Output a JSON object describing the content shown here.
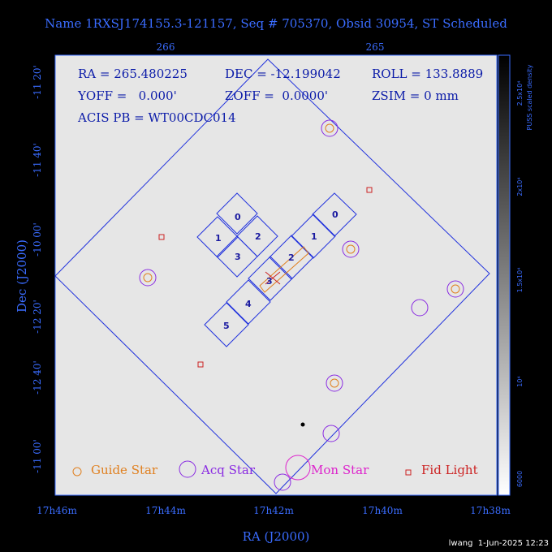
{
  "header": {
    "title": "Name 1RXSJ174155.3-121157, Seq # 705370, Obsid 30954, ST Scheduled"
  },
  "info": {
    "ra": "RA = 265.480225",
    "dec": "DEC = -12.199042",
    "roll": "ROLL = 133.8889",
    "yoff": "YOFF =   0.000'",
    "zoff": "ZOFF =  0.0000'",
    "zsim": "ZSIM = 0 mm",
    "acis": "ACIS PB = WT00CDC014"
  },
  "axes": {
    "top_ticks": [
      "266",
      "265"
    ],
    "left_ticks": [
      "-11 20'",
      "-11 40'",
      "-10 00'",
      "-12 20'",
      "-12 40'",
      "-11 00'"
    ],
    "bottom_ticks": [
      "17h46m",
      "17h44m",
      "17h42m",
      "17h40m",
      "17h38m"
    ],
    "x_label": "RA (J2000)",
    "y_label": "Dec (J2000)"
  },
  "chips": {
    "acis_i": [
      "0",
      "1",
      "2",
      "3"
    ],
    "acis_s": [
      "0",
      "1",
      "2",
      "3",
      "4",
      "5"
    ]
  },
  "legend": [
    "Guide Star",
    "Acq Star",
    "Mon Star",
    "Fid Light"
  ],
  "colorbar": {
    "label": "PUSS scaled density",
    "ticks": [
      "2.5x10⁴",
      "2x10⁴",
      "1.5x10⁴",
      "10⁴",
      "6000"
    ]
  },
  "footer": "lwang  1-Jun-2025 12:23"
}
